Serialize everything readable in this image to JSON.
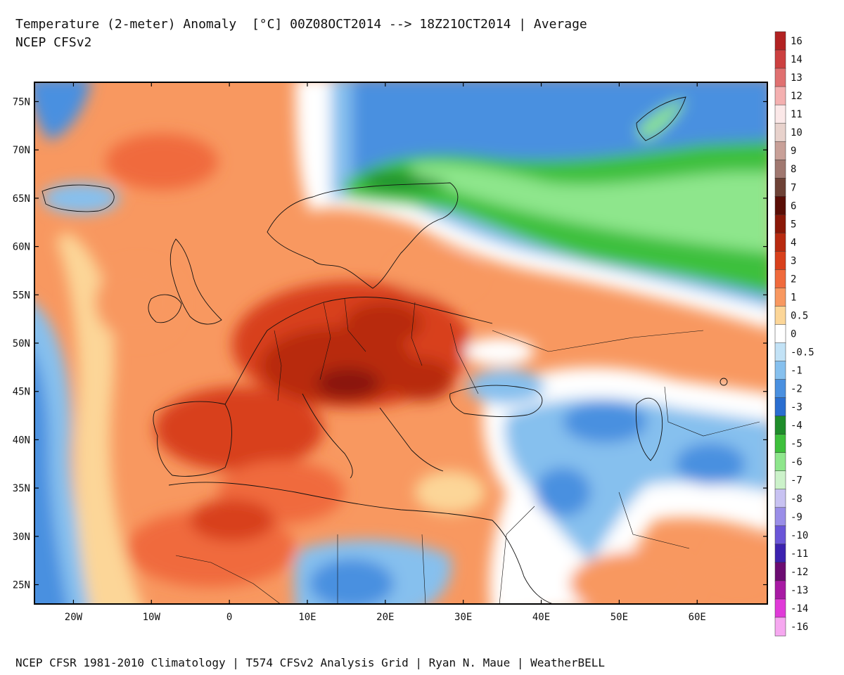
{
  "header": {
    "title": "Temperature (2-meter) Anomaly  [°C] 00Z08OCT2014 --> 18Z21OCT2014 | Average",
    "subtitle": "NCEP CFSv2"
  },
  "footer": {
    "credit": "NCEP CFSR 1981-2010 Climatology | T574 CFSv2 Analysis Grid | Ryan N. Maue | WeatherBELL"
  },
  "map": {
    "lon_range": [
      -25,
      69
    ],
    "lat_range": [
      23,
      77
    ],
    "lon_ticks": [
      {
        "value": -20,
        "label": "20W"
      },
      {
        "value": -10,
        "label": "10W"
      },
      {
        "value": 0,
        "label": "0"
      },
      {
        "value": 10,
        "label": "10E"
      },
      {
        "value": 20,
        "label": "20E"
      },
      {
        "value": 30,
        "label": "30E"
      },
      {
        "value": 40,
        "label": "40E"
      },
      {
        "value": 50,
        "label": "50E"
      },
      {
        "value": 60,
        "label": "60E"
      }
    ],
    "lat_ticks": [
      {
        "value": 75,
        "label": "75N"
      },
      {
        "value": 70,
        "label": "70N"
      },
      {
        "value": 65,
        "label": "65N"
      },
      {
        "value": 60,
        "label": "60N"
      },
      {
        "value": 55,
        "label": "55N"
      },
      {
        "value": 50,
        "label": "50N"
      },
      {
        "value": 45,
        "label": "45N"
      },
      {
        "value": 40,
        "label": "40N"
      },
      {
        "value": 35,
        "label": "35N"
      },
      {
        "value": 30,
        "label": "30N"
      },
      {
        "value": 25,
        "label": "25N"
      }
    ]
  },
  "colorbar": {
    "entries": [
      {
        "label": "16",
        "color": "#b22222"
      },
      {
        "label": "14",
        "color": "#cc4040"
      },
      {
        "label": "13",
        "color": "#e07070"
      },
      {
        "label": "12",
        "color": "#f4b0b0"
      },
      {
        "label": "11",
        "color": "#fbe8e8"
      },
      {
        "label": "10",
        "color": "#e8d2cc"
      },
      {
        "label": "9",
        "color": "#c8a098"
      },
      {
        "label": "8",
        "color": "#a07870"
      },
      {
        "label": "7",
        "color": "#6e4236"
      },
      {
        "label": "6",
        "color": "#5a0e06"
      },
      {
        "label": "5",
        "color": "#8a1808"
      },
      {
        "label": "4",
        "color": "#b82a10"
      },
      {
        "label": "3",
        "color": "#d8401c"
      },
      {
        "label": "2",
        "color": "#f06a3c"
      },
      {
        "label": "1",
        "color": "#f89860"
      },
      {
        "label": "0.5",
        "color": "#fcd698"
      },
      {
        "label": "0",
        "color": "#ffffff"
      },
      {
        "label": "-0.5",
        "color": "#c2e2f6"
      },
      {
        "label": "-1",
        "color": "#86c0ee"
      },
      {
        "label": "-2",
        "color": "#4a90e0"
      },
      {
        "label": "-3",
        "color": "#2a6ed0"
      },
      {
        "label": "-4",
        "color": "#1e8c2a"
      },
      {
        "label": "-5",
        "color": "#3ec03c"
      },
      {
        "label": "-6",
        "color": "#8ee68c"
      },
      {
        "label": "-7",
        "color": "#ccf2ca"
      },
      {
        "label": "-8",
        "color": "#c8c2f2"
      },
      {
        "label": "-9",
        "color": "#9a8ee8"
      },
      {
        "label": "-10",
        "color": "#6a56d8"
      },
      {
        "label": "-11",
        "color": "#3c22b0"
      },
      {
        "label": "-12",
        "color": "#6c0c72"
      },
      {
        "label": "-13",
        "color": "#a81aa4"
      },
      {
        "label": "-14",
        "color": "#e03ad8"
      },
      {
        "label": "-16",
        "color": "#f6a8f0"
      }
    ]
  }
}
